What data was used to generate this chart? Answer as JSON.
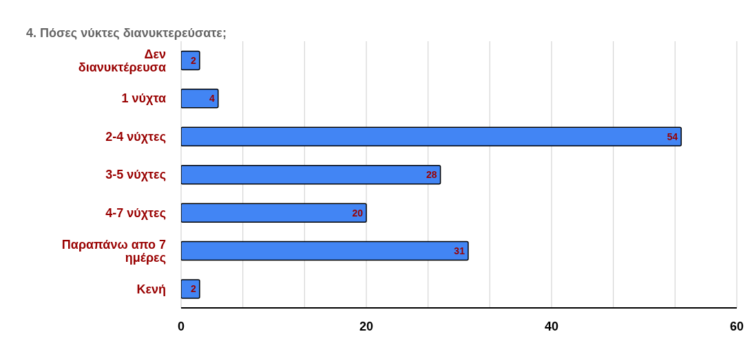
{
  "chart_data": {
    "type": "bar",
    "orientation": "horizontal",
    "title": "4. Πόσες νύκτες διανυκτερεύσατε;",
    "categories": [
      "Δεν διανυκτέρευσα",
      "1 νύχτα",
      "2-4 νύχτες",
      "3-5 νύχτες",
      "4-7 νύχτες",
      "Παραπάνω απο 7 ημέρες",
      "Κενή"
    ],
    "values": [
      2,
      4,
      54,
      28,
      20,
      31,
      2
    ],
    "color": "#4285f4",
    "xlim": [
      0,
      60
    ],
    "xticks": [
      0,
      {
        "value": 6.67,
        "label": null
      },
      {
        "value": 13.33,
        "label": null
      },
      20,
      {
        "value": 26.67,
        "label": null
      },
      {
        "value": 33.33,
        "label": null
      },
      40,
      {
        "value": 46.67,
        "label": null
      },
      {
        "value": 53.33,
        "label": null
      },
      60
    ],
    "grid": "x",
    "data_labels": true,
    "legend": false
  }
}
